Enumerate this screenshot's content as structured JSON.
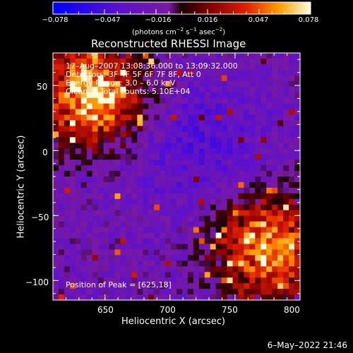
{
  "chart_data": {
    "type": "heatmap",
    "title": "Reconstructed RHESSI Image",
    "xlabel": "Heliocentric X (arcsec)",
    "ylabel": "Heliocentric Y (arcsec)",
    "xlim": [
      610,
      800
    ],
    "ylim": [
      -115,
      75
    ],
    "x_ticks": [
      "650",
      "700",
      "750",
      "800"
    ],
    "y_ticks": [
      "50",
      "0",
      "−50",
      "−100"
    ],
    "colorbar": {
      "ticks": [
        "−0.078",
        "−0.047",
        "−0.016",
        "0.016",
        "0.047",
        "0.078"
      ],
      "range": [
        -0.078,
        0.078
      ],
      "unit_base": "(photons cm",
      "unit_exp1": "−2",
      "unit_mid1": " s",
      "unit_exp2": "−1",
      "unit_mid2": " asec",
      "unit_exp3": "−2",
      "unit_end": ")"
    },
    "hot_regions": [
      {
        "x": 640,
        "y": 45,
        "value": 0.078
      },
      {
        "x": 775,
        "y": -75,
        "value": 0.07
      }
    ],
    "peak": {
      "x": 625,
      "y": 18
    }
  },
  "annotations": {
    "time": "17–Aug–2007 13:08:36.000 to 13:09:32.000",
    "detectors": "Detectors: 3F 4F 5F 6F 7F 8F, Att 0",
    "energy": "Energy Range: 3.0 – 6.0 keV",
    "clean": "Clean     Total counts: 5.10E+04",
    "peak_text": "Position of Peak = [625,18]"
  },
  "footer": {
    "timestamp": "6–May–2022 21:46"
  }
}
